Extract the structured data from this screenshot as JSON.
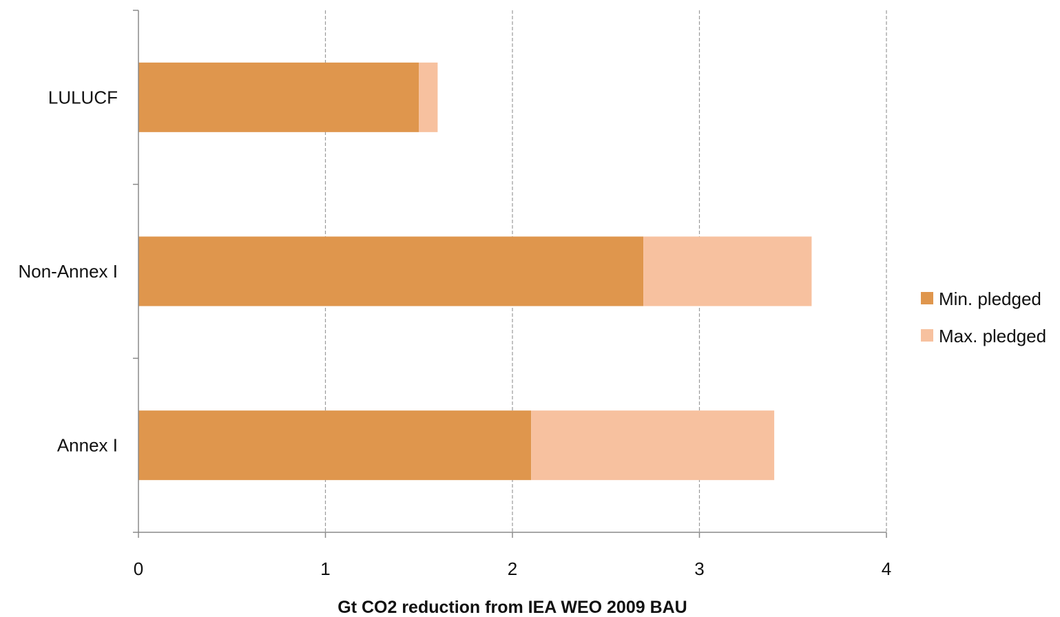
{
  "chart_data": {
    "type": "bar",
    "orientation": "horizontal",
    "stacked": true,
    "title": "",
    "xlabel": "Gt CO2 reduction from IEA WEO 2009 BAU",
    "ylabel": "",
    "xlim": [
      0,
      4
    ],
    "xticks": [
      "0",
      "1",
      "2",
      "3",
      "4"
    ],
    "categories": [
      "LULUCF",
      "Non-Annex I",
      "Annex I"
    ],
    "series": [
      {
        "name": "Min. pledged",
        "color": "#DF964D",
        "values": [
          1.5,
          2.7,
          2.1
        ]
      },
      {
        "name": "Max. pledged",
        "color": "#F7C19F",
        "values": [
          0.1,
          0.9,
          1.3
        ]
      }
    ],
    "grid": "vertical dashed",
    "legend": "right"
  }
}
